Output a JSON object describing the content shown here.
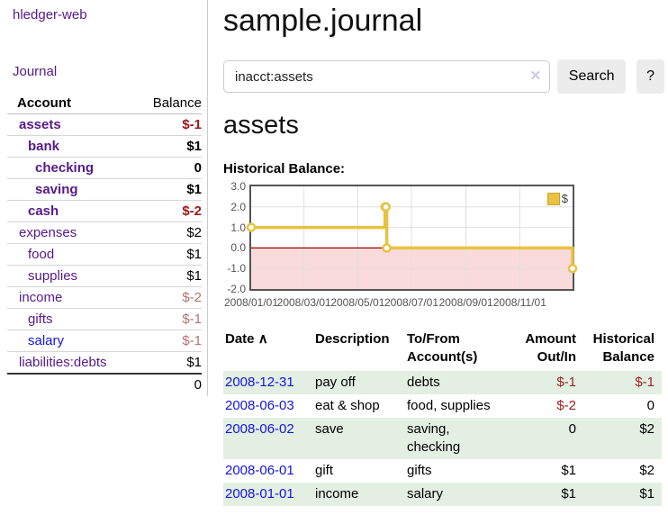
{
  "sidebar": {
    "app_title": "hledger-web",
    "nav": {
      "journal": "Journal"
    },
    "accounts": {
      "headers": {
        "account": "Account",
        "balance": "Balance"
      },
      "rows": [
        {
          "name": "assets",
          "depth": 1,
          "bold": true,
          "link": "purple",
          "balance": "$-1",
          "balance_style": "neg-strong"
        },
        {
          "name": "bank",
          "depth": 2,
          "bold": true,
          "link": "purple",
          "balance": "$1",
          "balance_style": "pos-strong"
        },
        {
          "name": "checking",
          "depth": 3,
          "bold": true,
          "link": "purple",
          "balance": "0",
          "balance_style": "pos-strong"
        },
        {
          "name": "saving",
          "depth": 3,
          "bold": true,
          "link": "purple",
          "balance": "$1",
          "balance_style": "pos-strong"
        },
        {
          "name": "cash",
          "depth": 2,
          "bold": true,
          "link": "purple",
          "balance": "$-2",
          "balance_style": "neg-strong"
        },
        {
          "name": "expenses",
          "depth": 1,
          "bold": false,
          "link": "purple",
          "balance": "$2",
          "balance_style": "pos"
        },
        {
          "name": "food",
          "depth": 2,
          "bold": false,
          "link": "purple",
          "balance": "$1",
          "balance_style": "pos"
        },
        {
          "name": "supplies",
          "depth": 2,
          "bold": false,
          "link": "purple",
          "balance": "$1",
          "balance_style": "pos"
        },
        {
          "name": "income",
          "depth": 1,
          "bold": false,
          "link": "purple",
          "balance": "$-2",
          "balance_style": "neg-dim"
        },
        {
          "name": "gifts",
          "depth": 2,
          "bold": false,
          "link": "purple",
          "balance": "$-1",
          "balance_style": "neg-dim"
        },
        {
          "name": "salary",
          "depth": 2,
          "bold": false,
          "link": "blue",
          "balance": "$-1",
          "balance_style": "neg-dim"
        },
        {
          "name": "liabilities:debts",
          "depth": 1,
          "bold": false,
          "link": "purple",
          "balance": "$1",
          "balance_style": "pos"
        }
      ],
      "total": "0"
    }
  },
  "main": {
    "title": "sample.journal",
    "search": {
      "value": "inacct:assets",
      "clear_icon": "✕",
      "button_label": "Search",
      "help_label": "?"
    },
    "account_heading": "assets",
    "register": {
      "headers": {
        "date": "Date",
        "sort_icon": "∧",
        "description": "Description",
        "accounts": "To/From Account(s)",
        "amount": "Amount Out/In",
        "balance": "Historical Balance"
      },
      "rows": [
        {
          "date": "2008-12-31",
          "description": "pay off",
          "accounts": "debts",
          "amount": "$-1",
          "amount_neg": true,
          "balance": "$-1",
          "balance_neg": true
        },
        {
          "date": "2008-06-03",
          "description": "eat & shop",
          "accounts": "food, supplies",
          "amount": "$-2",
          "amount_neg": true,
          "balance": "0",
          "balance_neg": false
        },
        {
          "date": "2008-06-02",
          "description": "save",
          "accounts": "saving, checking",
          "amount": "0",
          "amount_neg": false,
          "balance": "$2",
          "balance_neg": false
        },
        {
          "date": "2008-06-01",
          "description": "gift",
          "accounts": "gifts",
          "amount": "$1",
          "amount_neg": false,
          "balance": "$2",
          "balance_neg": false
        },
        {
          "date": "2008-01-01",
          "description": "income",
          "accounts": "salary",
          "amount": "$1",
          "amount_neg": false,
          "balance": "$1",
          "balance_neg": false
        }
      ]
    }
  },
  "chart_data": {
    "type": "line",
    "step": true,
    "title": "Historical Balance:",
    "series": [
      {
        "name": "$",
        "color": "#e8c240",
        "points": [
          [
            "2008-01-01",
            1
          ],
          [
            "2008-06-01",
            2
          ],
          [
            "2008-06-02",
            2
          ],
          [
            "2008-06-03",
            0
          ],
          [
            "2008-12-31",
            -1
          ]
        ]
      }
    ],
    "xrange": [
      "2008-01-01",
      "2008-12-31"
    ],
    "ylim": [
      -2,
      3
    ],
    "yticks": [
      3.0,
      2.0,
      1.0,
      0.0,
      -1.0,
      -2.0
    ],
    "xticks": [
      "2008/01/01",
      "2008/03/01",
      "2008/05/01",
      "2008/07/01",
      "2008/09/01",
      "2008/11/01"
    ],
    "grid": true,
    "legend_position": "top-right",
    "negative_region_color": "#f9dbdb",
    "zero_line_color": "#a00000",
    "grid_color": "#e0e0e0",
    "border_color": "#545454"
  },
  "colors": {
    "link_purple": "#551a8b",
    "link_blue": "#1414e0",
    "negative_strong": "#991717",
    "negative": "#a12121",
    "negative_dim": "#b87070",
    "row_green": "#e3efe3",
    "chart_gold": "#e8c240",
    "button_gray": "#ececec"
  }
}
